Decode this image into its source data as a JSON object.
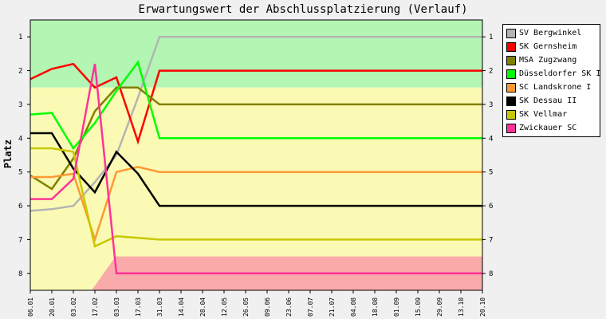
{
  "chart_data": {
    "type": "line",
    "title": "Erwartungswert der Abschlussplatzierung (Verlauf)",
    "xlabel": "",
    "ylabel": "Platz",
    "ylim": [
      8.5,
      0.5
    ],
    "yticks": [
      1,
      2,
      3,
      4,
      5,
      6,
      7,
      8
    ],
    "grid": false,
    "legend_position": "right",
    "x": [
      "06.01",
      "20.01",
      "03.02",
      "17.02",
      "03.03",
      "17.03",
      "31.03",
      "14.04",
      "28.04",
      "12.05",
      "26.05",
      "09.06",
      "23.06",
      "07.07",
      "21.07",
      "04.08",
      "18.08",
      "01.09",
      "15.09",
      "29.09",
      "13.10",
      "20.10"
    ],
    "zones": [
      {
        "color": "#b3f5b3",
        "from": 0.5,
        "to": 2.5
      },
      {
        "color": "#fafab4",
        "from": 2.5,
        "to": 8.5
      },
      {
        "color": "#faaaaa",
        "from": 7.5,
        "to": 8.5
      }
    ],
    "series": [
      {
        "name": "SV Bergwinkel",
        "color": "#b4b4b4",
        "values": [
          6.15,
          6.1,
          6.0,
          5.3,
          4.5,
          2.8,
          1.0,
          1.0,
          1.0,
          1.0,
          1.0,
          1.0,
          1.0,
          1.0,
          1.0,
          1.0,
          1.0,
          1.0,
          1.0,
          1.0,
          1.0,
          1.0
        ]
      },
      {
        "name": "SK Gernsheim",
        "color": "#ff0000",
        "values": [
          2.25,
          1.95,
          1.8,
          2.5,
          2.2,
          4.1,
          2.0,
          2.0,
          2.0,
          2.0,
          2.0,
          2.0,
          2.0,
          2.0,
          2.0,
          2.0,
          2.0,
          2.0,
          2.0,
          2.0,
          2.0,
          2.0
        ]
      },
      {
        "name": "MSA Zugzwang",
        "color": "#808000",
        "values": [
          5.1,
          5.5,
          4.6,
          3.2,
          2.5,
          2.5,
          3.0,
          3.0,
          3.0,
          3.0,
          3.0,
          3.0,
          3.0,
          3.0,
          3.0,
          3.0,
          3.0,
          3.0,
          3.0,
          3.0,
          3.0,
          3.0
        ]
      },
      {
        "name": "Düsseldorfer SK I",
        "color": "#00ff00",
        "values": [
          3.3,
          3.25,
          4.3,
          3.55,
          2.6,
          1.75,
          4.0,
          4.0,
          4.0,
          4.0,
          4.0,
          4.0,
          4.0,
          4.0,
          4.0,
          4.0,
          4.0,
          4.0,
          4.0,
          4.0,
          4.0,
          4.0
        ]
      },
      {
        "name": "SC Landskrone I",
        "color": "#ff9933",
        "values": [
          5.15,
          5.15,
          5.05,
          7.0,
          5.0,
          4.85,
          5.0,
          5.0,
          5.0,
          5.0,
          5.0,
          5.0,
          5.0,
          5.0,
          5.0,
          5.0,
          5.0,
          5.0,
          5.0,
          5.0,
          5.0,
          5.0
        ]
      },
      {
        "name": "SK Dessau II",
        "color": "#000000",
        "values": [
          3.85,
          3.85,
          4.9,
          5.6,
          4.4,
          5.05,
          6.0,
          6.0,
          6.0,
          6.0,
          6.0,
          6.0,
          6.0,
          6.0,
          6.0,
          6.0,
          6.0,
          6.0,
          6.0,
          6.0,
          6.0,
          6.0
        ]
      },
      {
        "name": "SK Vellmar",
        "color": "#c8c800",
        "values": [
          4.3,
          4.3,
          4.4,
          7.2,
          6.9,
          6.95,
          7.0,
          7.0,
          7.0,
          7.0,
          7.0,
          7.0,
          7.0,
          7.0,
          7.0,
          7.0,
          7.0,
          7.0,
          7.0,
          7.0,
          7.0,
          7.0
        ]
      },
      {
        "name": "Zwickauer SC",
        "color": "#ff3399",
        "values": [
          5.8,
          5.8,
          5.2,
          1.8,
          8.0,
          8.0,
          8.0,
          8.0,
          8.0,
          8.0,
          8.0,
          8.0,
          8.0,
          8.0,
          8.0,
          8.0,
          8.0,
          8.0,
          8.0,
          8.0,
          8.0,
          8.0
        ]
      }
    ]
  }
}
